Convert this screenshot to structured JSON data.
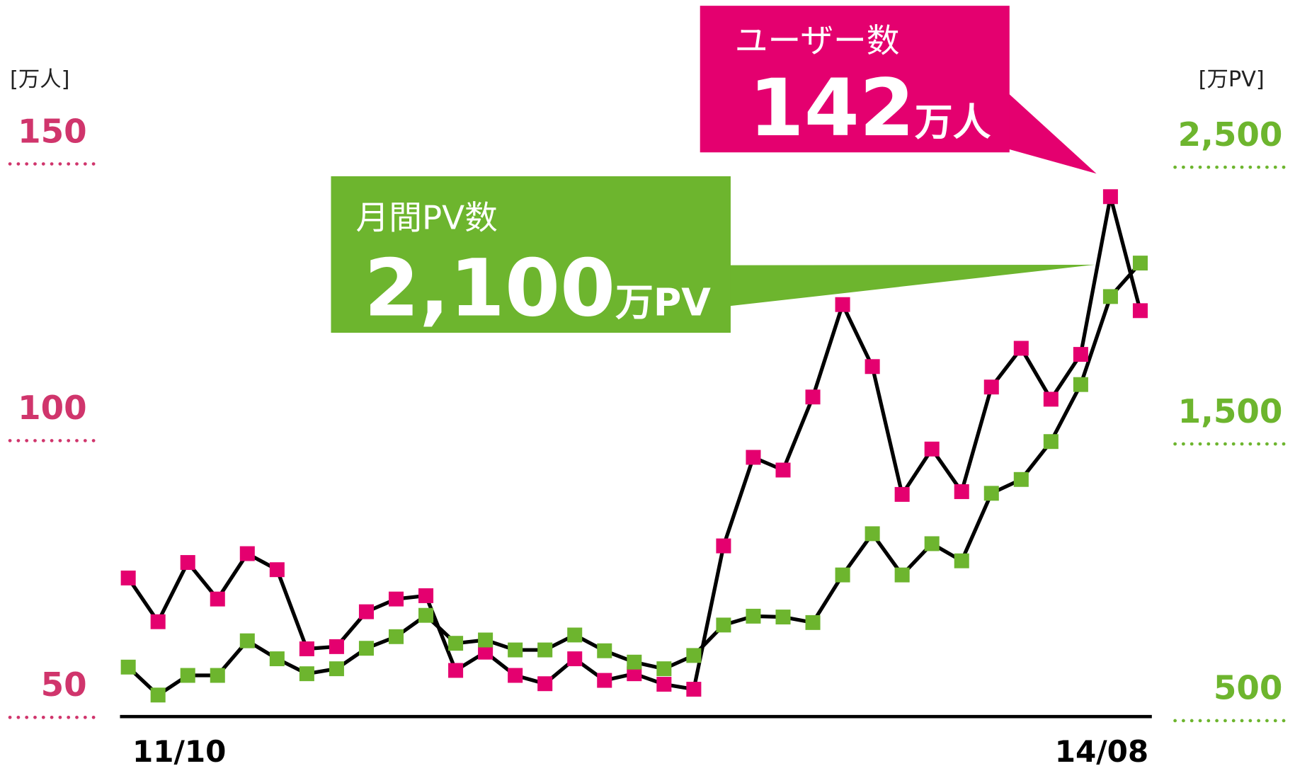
{
  "chart_data": {
    "type": "line",
    "categories": [
      "11/10",
      null,
      null,
      null,
      null,
      null,
      null,
      null,
      null,
      null,
      null,
      null,
      null,
      null,
      null,
      null,
      null,
      null,
      null,
      null,
      null,
      null,
      null,
      null,
      null,
      null,
      null,
      null,
      null,
      null,
      null,
      null,
      null,
      null,
      "14/08"
    ],
    "series": [
      {
        "name": "ユーザー数",
        "color": "#e4006f",
        "axis": "y",
        "values": [
          73.1,
          65.2,
          75.9,
          69.3,
          77.5,
          74.6,
          60.3,
          60.7,
          67.0,
          69.3,
          69.9,
          56.4,
          59.7,
          55.5,
          54.0,
          58.5,
          54.6,
          55.8,
          53.9,
          53.0,
          78.9,
          94.9,
          92.6,
          105.8,
          122.5,
          111.3,
          88.2,
          96.4,
          88.7,
          107.6,
          114.6,
          105.4,
          113.5,
          142,
          121.4
        ]
      },
      {
        "name": "月間PV数",
        "color": "#6db52e",
        "axis": "y2",
        "values": [
          640,
          539,
          610,
          610,
          735,
          670,
          616,
          634,
          708,
          750,
          827,
          726,
          738,
          702,
          702,
          756,
          699,
          658,
          634,
          682,
          792,
          824,
          821,
          801,
          973,
          1122,
          973,
          1086,
          1024,
          1268,
          1318,
          1455,
          1661,
          1979,
          2100
        ]
      }
    ],
    "line_color": "#000000",
    "ylabel": "[万人]",
    "y2label": "[万PV]",
    "ylim": [
      48,
      175
    ],
    "yticks": [
      50,
      100,
      150
    ],
    "y2lim": [
      460,
      3000
    ],
    "y2ticks": [
      500,
      {
        "value": 1500,
        "label": "1,500"
      },
      {
        "value": 2500,
        "label": "2,500"
      }
    ],
    "annotations": [
      {
        "text": "ユーザー数",
        "value": 142,
        "label": "142",
        "unit": "万人"
      },
      {
        "text": "月間PV数",
        "value": 2100,
        "label": "2,100",
        "unit": "万PV"
      }
    ]
  }
}
